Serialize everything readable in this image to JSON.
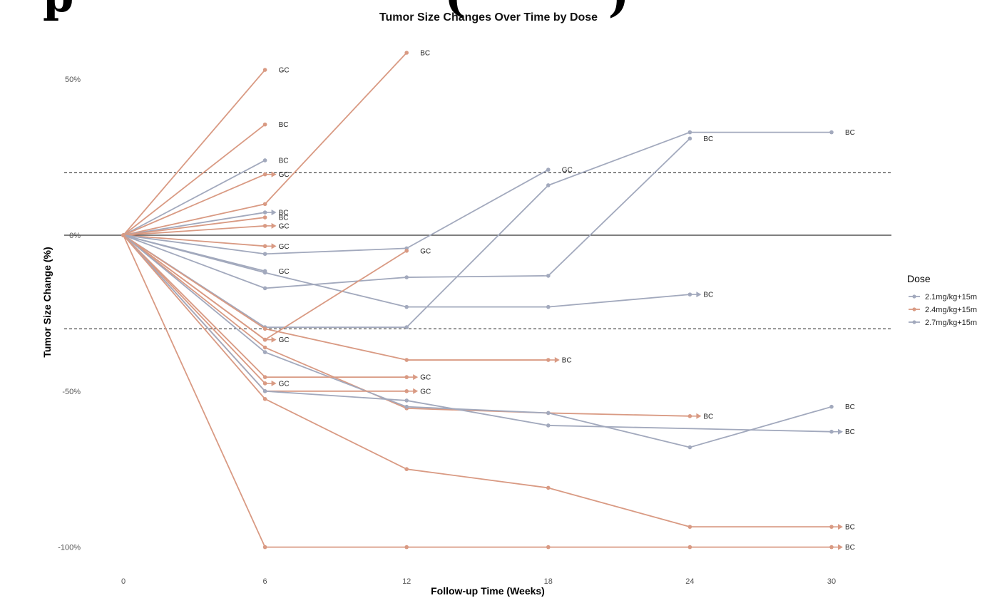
{
  "header": {
    "partial_title_left": "p",
    "partial_title_right": "(",
    "partial_title_right_close": ")"
  },
  "chart_data": {
    "type": "line",
    "title": "Tumor Size Changes Over Time by Dose",
    "xlabel": "Follow-up Time (Weeks)",
    "ylabel": "Tumor Size Change (%)",
    "x_ticks": [
      0,
      6,
      12,
      18,
      24,
      30
    ],
    "y_ticks": [
      50,
      0,
      -50,
      -100
    ],
    "y_tick_labels": [
      "50%",
      "0%",
      "-50%",
      "-100%"
    ],
    "xlim": [
      0,
      32.5
    ],
    "ylim": [
      -105,
      60
    ],
    "reference_lines": {
      "solid": [
        0
      ],
      "dashed": [
        20,
        -30
      ]
    },
    "legend": {
      "title": "Dose",
      "position": "right",
      "entries": [
        "2.1mg/kg+15m",
        "2.4mg/kg+15m",
        "2.7mg/kg+15m"
      ]
    },
    "colors": {
      "2.1mg/kg+15m": "#a2a9bd",
      "2.4mg/kg+15m": "#d99a83",
      "2.7mg/kg+15m": "#a2a9bd"
    },
    "series": [
      {
        "dose": "2.4mg/kg+15m",
        "points": [
          [
            0,
            0
          ],
          [
            6,
            53
          ]
        ],
        "label": "GC",
        "arrow": false
      },
      {
        "dose": "2.4mg/kg+15m",
        "points": [
          [
            0,
            0
          ],
          [
            6,
            35.5
          ]
        ],
        "label": "BC",
        "arrow": false
      },
      {
        "dose": "2.1mg/kg+15m",
        "points": [
          [
            0,
            0
          ],
          [
            6,
            24
          ]
        ],
        "label": "BC",
        "arrow": false
      },
      {
        "dose": "2.4mg/kg+15m",
        "points": [
          [
            0,
            0
          ],
          [
            6,
            19.5
          ]
        ],
        "label": "GC",
        "arrow": true
      },
      {
        "dose": "2.4mg/kg+15m",
        "points": [
          [
            0,
            0
          ],
          [
            6,
            10
          ],
          [
            12,
            58.5
          ]
        ],
        "label": "BC",
        "arrow": false
      },
      {
        "dose": "2.1mg/kg+15m",
        "points": [
          [
            0,
            0
          ],
          [
            6,
            7.3
          ]
        ],
        "label": "BC",
        "arrow": true
      },
      {
        "dose": "2.4mg/kg+15m",
        "points": [
          [
            0,
            0
          ],
          [
            6,
            5.7
          ]
        ],
        "label": "BC",
        "arrow": false
      },
      {
        "dose": "2.4mg/kg+15m",
        "points": [
          [
            0,
            0
          ],
          [
            6,
            3
          ]
        ],
        "label": "GC",
        "arrow": true
      },
      {
        "dose": "2.4mg/kg+15m",
        "points": [
          [
            0,
            0
          ],
          [
            6,
            -3.5
          ]
        ],
        "label": "GC",
        "arrow": true
      },
      {
        "dose": "2.7mg/kg+15m",
        "points": [
          [
            0,
            0
          ],
          [
            6,
            -6
          ],
          [
            12,
            -4.2
          ],
          [
            18,
            21
          ]
        ],
        "label": "GC",
        "arrow": false
      },
      {
        "dose": "2.7mg/kg+15m",
        "points": [
          [
            0,
            0
          ],
          [
            6,
            -11.5
          ]
        ],
        "label": "GC",
        "arrow": false
      },
      {
        "dose": "2.7mg/kg+15m",
        "points": [
          [
            0,
            0
          ],
          [
            6,
            -12
          ],
          [
            12,
            -23
          ],
          [
            18,
            -23
          ],
          [
            24,
            -19
          ]
        ],
        "label": "BC",
        "arrow": true
      },
      {
        "dose": "2.7mg/kg+15m",
        "points": [
          [
            0,
            0
          ],
          [
            6,
            -17
          ],
          [
            12,
            -13.5
          ],
          [
            18,
            -13
          ],
          [
            24,
            31
          ]
        ],
        "label": "BC",
        "arrow": false
      },
      {
        "dose": "2.1mg/kg+15m",
        "points": [
          [
            0,
            0
          ],
          [
            6,
            -29.5
          ],
          [
            12,
            -29.5
          ],
          [
            18,
            16
          ],
          [
            24,
            33
          ],
          [
            30,
            33
          ]
        ],
        "label": "BC",
        "arrow": false
      },
      {
        "dose": "2.4mg/kg+15m",
        "points": [
          [
            0,
            0
          ],
          [
            6,
            -33.5
          ],
          [
            12,
            -5
          ]
        ],
        "label": "GC",
        "arrow": false
      },
      {
        "dose": "2.4mg/kg+15m",
        "points": [
          [
            0,
            0
          ],
          [
            6,
            -33.5
          ]
        ],
        "label": "GC",
        "arrow": true
      },
      {
        "dose": "2.4mg/kg+15m",
        "points": [
          [
            0,
            0
          ],
          [
            6,
            -30
          ],
          [
            12,
            -40
          ],
          [
            18,
            -40
          ]
        ],
        "label": "BC",
        "arrow": true
      },
      {
        "dose": "2.4mg/kg+15m",
        "points": [
          [
            0,
            0
          ],
          [
            6,
            -36
          ],
          [
            12,
            -55.5
          ],
          [
            18,
            -57
          ],
          [
            24,
            -58
          ]
        ],
        "label": "BC",
        "arrow": true
      },
      {
        "dose": "2.1mg/kg+15m",
        "points": [
          [
            0,
            0
          ],
          [
            6,
            -37.5
          ],
          [
            12,
            -55
          ],
          [
            18,
            -57
          ],
          [
            24,
            -68
          ],
          [
            30,
            -55
          ]
        ],
        "label": "BC",
        "arrow": false
      },
      {
        "dose": "2.4mg/kg+15m",
        "points": [
          [
            0,
            0
          ],
          [
            6,
            -45.5
          ],
          [
            12,
            -45.5
          ]
        ],
        "label": "GC",
        "arrow": true
      },
      {
        "dose": "2.4mg/kg+15m",
        "points": [
          [
            0,
            0
          ],
          [
            6,
            -47.5
          ]
        ],
        "label": "GC",
        "arrow": true
      },
      {
        "dose": "2.4mg/kg+15m",
        "points": [
          [
            0,
            0
          ],
          [
            6,
            -50
          ],
          [
            12,
            -50
          ]
        ],
        "label": "GC",
        "arrow": true
      },
      {
        "dose": "2.7mg/kg+15m",
        "points": [
          [
            0,
            0
          ],
          [
            6,
            -50
          ],
          [
            12,
            -53
          ],
          [
            18,
            -61
          ],
          [
            30,
            -63
          ]
        ],
        "label": "BC",
        "arrow": true
      },
      {
        "dose": "2.4mg/kg+15m",
        "points": [
          [
            0,
            0
          ],
          [
            6,
            -52.5
          ],
          [
            12,
            -75
          ],
          [
            18,
            -81
          ],
          [
            24,
            -93.5
          ],
          [
            30,
            -93.5
          ]
        ],
        "label": "BC",
        "arrow": true
      },
      {
        "dose": "2.4mg/kg+15m",
        "points": [
          [
            0,
            0
          ],
          [
            6,
            -100
          ],
          [
            12,
            -100
          ],
          [
            18,
            -100
          ],
          [
            24,
            -100
          ],
          [
            30,
            -100
          ]
        ],
        "label": "BC",
        "arrow": true
      }
    ]
  }
}
